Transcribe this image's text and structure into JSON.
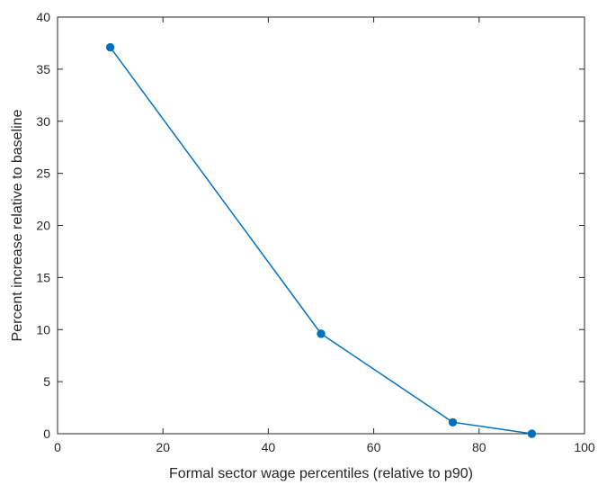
{
  "chart_data": {
    "type": "line",
    "title": "",
    "xlabel": "Formal sector wage percentiles (relative to p90)",
    "ylabel": "Percent increase relative to baseline",
    "xlim": [
      0,
      100
    ],
    "ylim": [
      0,
      40
    ],
    "xticks": [
      0,
      20,
      40,
      60,
      80,
      100
    ],
    "yticks": [
      0,
      5,
      10,
      15,
      20,
      25,
      30,
      35,
      40
    ],
    "grid": false,
    "legend": "none",
    "series": [
      {
        "color": "#0072BD",
        "marker": "circle",
        "x": [
          10,
          50,
          75,
          90
        ],
        "y": [
          37.1,
          9.6,
          1.1,
          0.0
        ]
      }
    ]
  }
}
